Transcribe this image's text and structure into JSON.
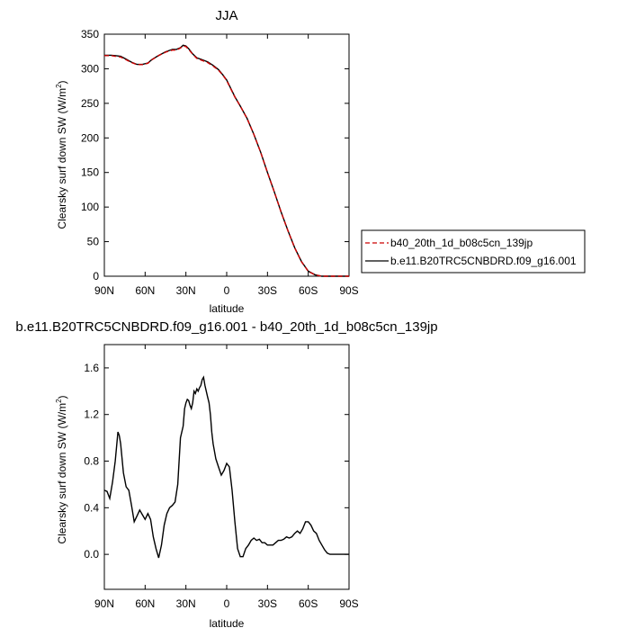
{
  "chart_data": [
    {
      "type": "line",
      "title": "JJA",
      "xlabel": "latitude",
      "ylabel": "Clearsky surf down SW (W/m²)",
      "ylabel_text": "Clearsky surf down SW (W/m",
      "ylabel_sup": "2",
      "ylabel_close": ")",
      "xlim": [
        90,
        -90
      ],
      "ylim": [
        0,
        350
      ],
      "xticks": [
        90,
        60,
        30,
        0,
        -30,
        -60,
        -90
      ],
      "xtick_labels": [
        "90N",
        "60N",
        "30N",
        "0",
        "30S",
        "60S",
        "90S"
      ],
      "yticks": [
        0,
        50,
        100,
        150,
        200,
        250,
        300,
        350
      ],
      "ytick_labels": [
        "0",
        "50",
        "100",
        "150",
        "200",
        "250",
        "300",
        "350"
      ],
      "legend": {
        "position": "right"
      },
      "series": [
        {
          "name": "b40_20th_1d_b08c5cn_139jp",
          "color": "#cc0000",
          "dash": "dashed",
          "x": [
            90,
            85,
            82,
            78,
            74,
            70,
            66,
            62,
            58,
            55,
            50,
            45,
            40,
            37,
            34,
            32,
            30,
            28,
            25,
            22,
            18,
            14,
            10,
            6,
            3,
            0,
            -3,
            -6,
            -10,
            -15,
            -20,
            -25,
            -30,
            -35,
            -40,
            -45,
            -50,
            -55,
            -60,
            -65,
            -70,
            -75,
            -80,
            -85,
            -90
          ],
          "y": [
            319,
            319,
            318,
            317,
            313,
            309,
            306,
            306,
            308,
            313,
            319,
            324,
            327,
            327,
            330,
            333,
            332,
            328,
            321,
            315,
            312,
            309,
            304,
            298,
            291,
            283,
            271,
            259,
            246,
            228,
            205,
            179,
            150,
            122,
            93,
            66,
            41,
            21,
            7,
            2,
            0,
            0,
            0,
            0,
            0
          ]
        },
        {
          "name": "b.e11.B20TRC5CNBDRD.f09_g16.001",
          "color": "#000000",
          "dash": "solid",
          "x": [
            90,
            85,
            82,
            78,
            74,
            70,
            66,
            62,
            58,
            55,
            50,
            45,
            40,
            37,
            34,
            32,
            30,
            28,
            25,
            22,
            18,
            14,
            10,
            6,
            3,
            0,
            -3,
            -6,
            -10,
            -15,
            -20,
            -25,
            -30,
            -35,
            -40,
            -45,
            -50,
            -55,
            -60,
            -65,
            -70,
            -75,
            -80,
            -85,
            -90
          ],
          "y": [
            319.5,
            319.5,
            319,
            318,
            314,
            309.5,
            306.3,
            306.3,
            308.3,
            313.3,
            319.3,
            324.5,
            328,
            328,
            330.5,
            334,
            333,
            329,
            321.5,
            315.8,
            313,
            310,
            304.8,
            298.8,
            291.6,
            283.7,
            271.7,
            259.5,
            246.1,
            228.1,
            205.1,
            179.1,
            150.1,
            122.1,
            93.1,
            66.2,
            41.3,
            21.3,
            7.3,
            2.1,
            0,
            0,
            0,
            0,
            0
          ]
        }
      ]
    },
    {
      "type": "line",
      "title": "b.e11.B20TRC5CNBDRD.f09_g16.001 - b40_20th_1d_b08c5cn_139jp",
      "xlabel": "latitude",
      "ylabel": "Clearsky surf down SW (W/m²)",
      "ylabel_text": "Clearsky surf down SW (W/m",
      "ylabel_sup": "2",
      "ylabel_close": ")",
      "xlim": [
        90,
        -90
      ],
      "ylim": [
        -0.3,
        1.8
      ],
      "xticks": [
        90,
        60,
        30,
        0,
        -30,
        -60,
        -90
      ],
      "xtick_labels": [
        "90N",
        "60N",
        "30N",
        "0",
        "30S",
        "60S",
        "90S"
      ],
      "yticks": [
        0,
        0.4,
        0.8,
        1.2,
        1.6
      ],
      "ytick_labels": [
        "0.0",
        "0.4",
        "0.8",
        "1.2",
        "1.6"
      ],
      "series": [
        {
          "color": "#000000",
          "dash": "solid",
          "x": [
            90,
            88,
            86,
            84,
            82,
            80,
            79,
            78,
            76,
            74,
            72,
            70,
            68,
            66,
            64,
            62,
            60,
            58,
            56,
            54,
            52,
            50,
            48,
            46,
            45,
            44,
            42,
            40,
            38,
            36,
            34,
            32,
            31,
            30,
            29,
            28,
            27,
            26,
            25,
            24,
            23,
            22,
            21,
            20,
            19,
            18,
            17,
            16,
            15,
            14,
            13,
            12,
            11,
            10,
            8,
            6,
            4,
            2,
            0,
            -2,
            -4,
            -6,
            -8,
            -10,
            -12,
            -14,
            -16,
            -18,
            -20,
            -22,
            -24,
            -26,
            -28,
            -30,
            -32,
            -34,
            -36,
            -38,
            -40,
            -42,
            -44,
            -46,
            -48,
            -50,
            -52,
            -54,
            -56,
            -58,
            -60,
            -62,
            -64,
            -66,
            -68,
            -70,
            -72,
            -74,
            -76,
            -78,
            -80,
            -82,
            -84,
            -86,
            -88,
            -90
          ],
          "y": [
            0.55,
            0.54,
            0.48,
            0.62,
            0.8,
            1.05,
            1.02,
            0.95,
            0.7,
            0.58,
            0.55,
            0.42,
            0.28,
            0.33,
            0.38,
            0.34,
            0.3,
            0.35,
            0.3,
            0.15,
            0.05,
            -0.03,
            0.08,
            0.25,
            0.3,
            0.35,
            0.4,
            0.42,
            0.45,
            0.6,
            1.0,
            1.1,
            1.25,
            1.3,
            1.33,
            1.32,
            1.28,
            1.25,
            1.3,
            1.4,
            1.38,
            1.42,
            1.4,
            1.43,
            1.45,
            1.5,
            1.52,
            1.45,
            1.4,
            1.35,
            1.3,
            1.2,
            1.05,
            0.95,
            0.82,
            0.75,
            0.68,
            0.72,
            0.78,
            0.75,
            0.55,
            0.28,
            0.05,
            -0.02,
            -0.02,
            0.05,
            0.08,
            0.12,
            0.14,
            0.12,
            0.13,
            0.1,
            0.1,
            0.08,
            0.08,
            0.08,
            0.1,
            0.12,
            0.12,
            0.13,
            0.15,
            0.14,
            0.15,
            0.18,
            0.2,
            0.18,
            0.22,
            0.28,
            0.28,
            0.25,
            0.2,
            0.18,
            0.12,
            0.08,
            0.04,
            0.01,
            0.0,
            0.0,
            0.0,
            0.0,
            0.0,
            0.0,
            0.0,
            0.0
          ]
        }
      ]
    }
  ]
}
